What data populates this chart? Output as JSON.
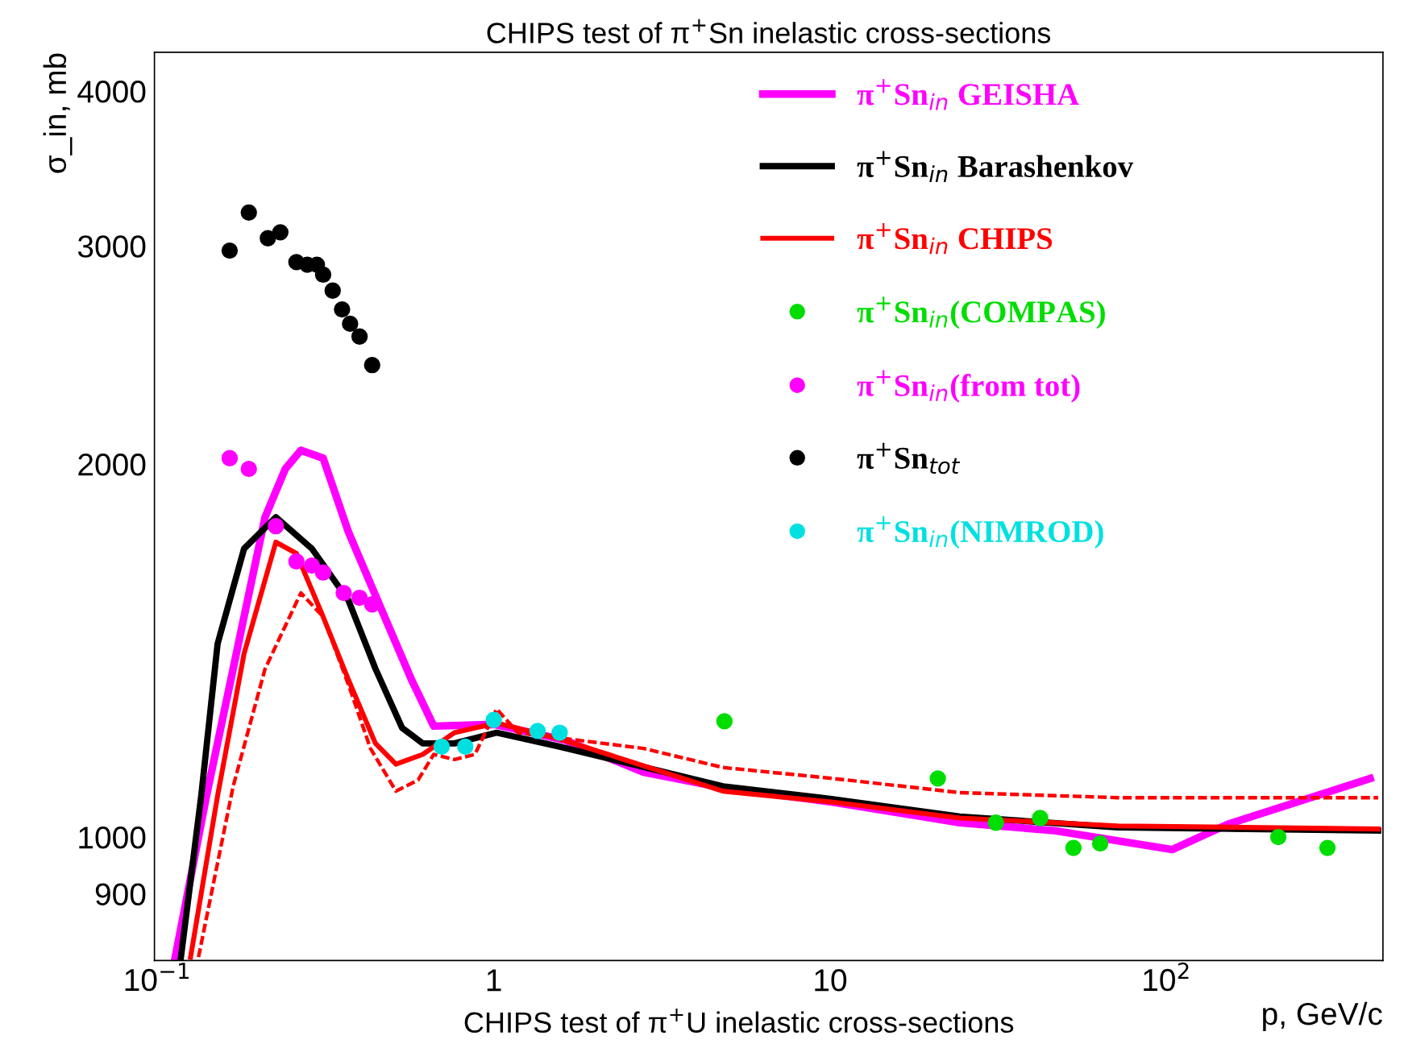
{
  "chart_data": {
    "type": "line",
    "title": "CHIPS test of π$^{+}$Sn inelastic cross-sections",
    "xlabel": "p, GeV/c",
    "ylabel": "σ_in, mb",
    "log": "xy",
    "xlim": [
      0.098,
      440
    ],
    "ylim": [
      795,
      4300
    ],
    "xticks": [
      {
        "value": 0.1,
        "label": "10$^{−1}$"
      },
      1,
      10,
      {
        "value": 100,
        "label": "10$^{2}$"
      }
    ],
    "yticks": [
      900,
      1000,
      2000,
      3000,
      4000
    ],
    "grid": false,
    "legend": "top right",
    "annotations": [
      "CHIPS test of π$^{+}$U inelastic cross-sections"
    ],
    "series": [
      {
        "name": "π$^{+}$Sn$_{in}$ GEISHA",
        "type": "line",
        "color": "#ff00ff",
        "line_style": "solid",
        "x": [
          0.113,
          0.14,
          0.181,
          0.209,
          0.24,
          0.267,
          0.311,
          0.37,
          0.48,
          0.57,
          0.663,
          1.0,
          1.63,
          2.79,
          4.8,
          10.2,
          24.3,
          46.4,
          104,
          152,
          403
        ],
        "values": [
          800,
          1080,
          1506,
          1812,
          1982,
          2052,
          2022,
          1762,
          1493,
          1339,
          1229,
          1233,
          1197,
          1128,
          1096,
          1067,
          1027,
          1012,
          977,
          1024,
          1115
        ]
      },
      {
        "name": "π$^{+}$Sn$_{in}$ Barashenkov",
        "type": "line",
        "color": "#000000",
        "line_style": "solid",
        "x": [
          0.1175,
          0.135,
          0.151,
          0.181,
          0.225,
          0.288,
          0.37,
          0.445,
          0.534,
          0.615,
          0.764,
          1.02,
          1.57,
          4.8,
          10.2,
          24.3,
          71.5,
          426
        ],
        "values": [
          800,
          1080,
          1432,
          1709,
          1812,
          1709,
          1552,
          1367,
          1225,
          1190,
          1190,
          1214,
          1183,
          1099,
          1073,
          1039,
          1018,
          1012
        ]
      },
      {
        "name": "π$^{+}$Sn$_{in}$ CHIPS",
        "type": "line",
        "color": "#ff0000",
        "line_style": "solid",
        "x": [
          0.1255,
          0.151,
          0.181,
          0.225,
          0.259,
          0.311,
          0.37,
          0.445,
          0.512,
          0.615,
          0.764,
          1.02,
          1.57,
          4.8,
          10.2,
          24.3,
          71.5,
          426
        ],
        "values": [
          800,
          1080,
          1406,
          1730,
          1694,
          1506,
          1339,
          1190,
          1145,
          1166,
          1214,
          1236,
          1200,
          1089,
          1067,
          1036,
          1021,
          1015
        ]
      },
      {
        "type": "line",
        "color": "#ff0000",
        "line_style": "dashed",
        "x": [
          0.1325,
          0.168,
          0.209,
          0.267,
          0.311,
          0.37,
          0.43,
          0.512,
          0.596,
          0.663,
          0.764,
          0.879,
          1.02,
          1.18,
          2.79,
          4.8,
          10.2,
          24.3,
          71.5,
          426
        ],
        "values": [
          800,
          1099,
          1367,
          1574,
          1506,
          1327,
          1179,
          1089,
          1112,
          1166,
          1155,
          1166,
          1269,
          1214,
          1179,
          1138,
          1115,
          1086,
          1076,
          1076
        ]
      },
      {
        "name": "π$^{+}$Sn$_{in}$(COMPAS)",
        "type": "scatter",
        "color": "#00dd00",
        "marker": "circle",
        "x": [
          4.85,
          20.9,
          31.1,
          42.1,
          52.9,
          63.5,
          215,
          301
        ],
        "values": [
          1240,
          1115,
          1027,
          1036,
          980,
          988,
          1000,
          980
        ]
      },
      {
        "name": "π$^{+}$Sn$_{in}$(from tot)",
        "type": "scatter",
        "color": "#ff00ff",
        "marker": "circle",
        "x": [
          0.164,
          0.187,
          0.225,
          0.259,
          0.288,
          0.311,
          0.358,
          0.399,
          0.435
        ],
        "values": [
          2022,
          1982,
          1782,
          1669,
          1656,
          1635,
          1574,
          1560,
          1541
        ]
      },
      {
        "name": "π$^{+}$Sn$_{tot}$",
        "type": "scatter",
        "color": "#000000",
        "marker": "circle",
        "x": [
          0.164,
          0.187,
          0.213,
          0.232,
          0.259,
          0.279,
          0.298,
          0.311,
          0.332,
          0.354,
          0.374,
          0.399,
          0.435
        ],
        "values": [
          2974,
          3192,
          3043,
          3077,
          2911,
          2897,
          2897,
          2844,
          2761,
          2666,
          2596,
          2535,
          2404
        ]
      },
      {
        "name": "π$^{+}$Sn$_{in}$(NIMROD)",
        "type": "scatter",
        "color": "#00e0e0",
        "marker": "circle",
        "x": [
          0.7,
          0.823,
          1.0,
          1.35,
          1.57
        ],
        "values": [
          1183,
          1183,
          1243,
          1218,
          1214
        ]
      }
    ]
  }
}
